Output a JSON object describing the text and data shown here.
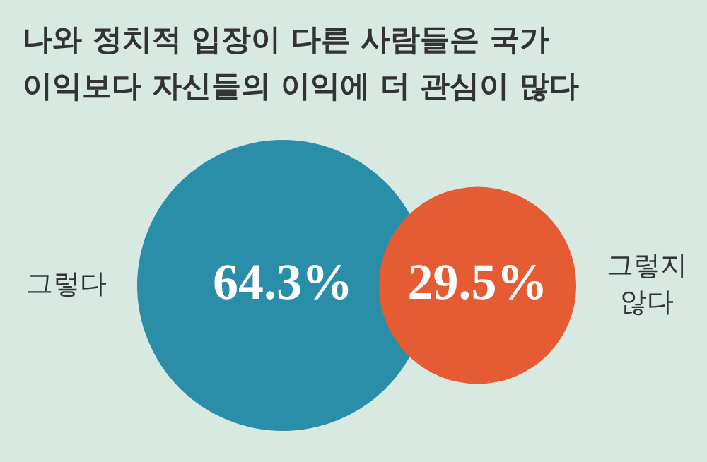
{
  "chart_data": {
    "type": "other",
    "title": "나와 정치적 입장이 다른 사람들은 국가\n이익보다 자신들의 이익에 더 관심이 많다",
    "categories": [
      "그렇다",
      "그렇지 않다"
    ],
    "values": [
      64.3,
      29.5
    ],
    "colors": [
      "#2a8ea8",
      "#e45b34"
    ],
    "value_labels": [
      "64.3%",
      "29.5%"
    ]
  }
}
